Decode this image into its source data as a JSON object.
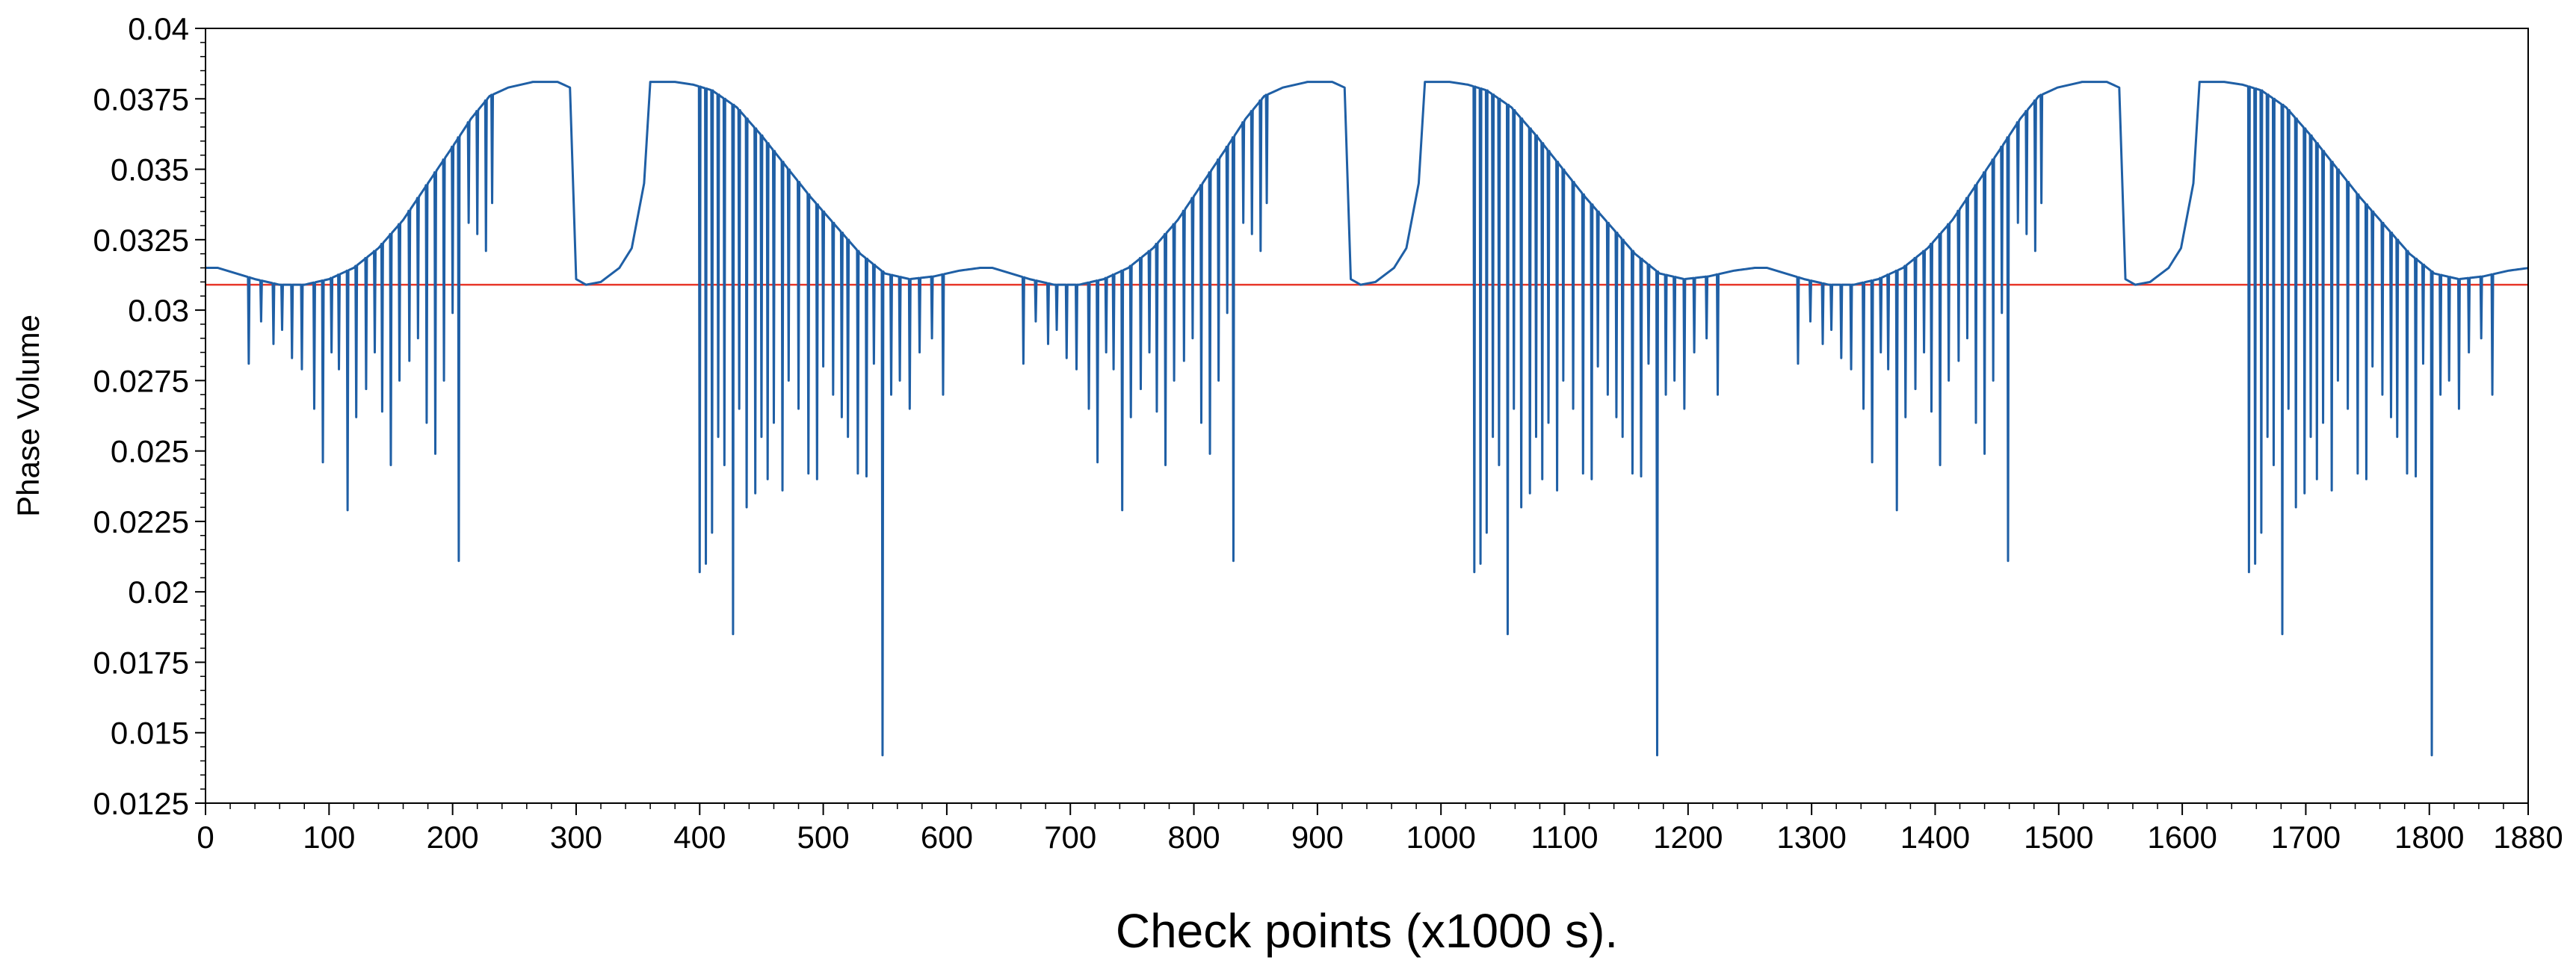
{
  "chart_data": {
    "type": "line",
    "title": "",
    "xlabel": "Check points (x1000 s).",
    "ylabel": "Phase Volume",
    "xlim": [
      0,
      1880
    ],
    "ylim": [
      0.0125,
      0.04
    ],
    "x_ticks": [
      "0",
      "100",
      "200",
      "300",
      "400",
      "500",
      "600",
      "700",
      "800",
      "900",
      "1000",
      "1100",
      "1200",
      "1300",
      "1400",
      "1500",
      "1600",
      "1700",
      "1800",
      "1880"
    ],
    "y_ticks": [
      "0.0125",
      "0.015",
      "0.0175",
      "0.02",
      "0.0225",
      "0.025",
      "0.0275",
      "0.03",
      "0.0325",
      "0.035",
      "0.0375",
      "0.04"
    ],
    "grid": false,
    "colors": {
      "series": "#1f5fa5",
      "reference": "#e8372a",
      "axis": "#000000"
    },
    "reference_line": {
      "y": 0.0309
    },
    "cycle_period": 627,
    "envelope": [
      [
        0,
        0.0315
      ],
      [
        10,
        0.0315
      ],
      [
        25,
        0.0313
      ],
      [
        40,
        0.0311
      ],
      [
        60,
        0.0309
      ],
      [
        80,
        0.0309
      ],
      [
        100,
        0.0311
      ],
      [
        120,
        0.0315
      ],
      [
        140,
        0.0322
      ],
      [
        160,
        0.0332
      ],
      [
        180,
        0.0345
      ],
      [
        200,
        0.0358
      ],
      [
        215,
        0.0368
      ],
      [
        230,
        0.0376
      ],
      [
        245,
        0.0379
      ],
      [
        265,
        0.0381
      ],
      [
        285,
        0.0381
      ],
      [
        295,
        0.0379
      ],
      [
        300,
        0.0311
      ],
      [
        308,
        0.0309
      ],
      [
        320,
        0.031
      ],
      [
        335,
        0.0315
      ],
      [
        345,
        0.0322
      ],
      [
        355,
        0.0345
      ],
      [
        360,
        0.0381
      ],
      [
        380,
        0.0381
      ],
      [
        395,
        0.038
      ],
      [
        410,
        0.0378
      ],
      [
        430,
        0.0372
      ],
      [
        450,
        0.0362
      ],
      [
        470,
        0.0351
      ],
      [
        490,
        0.034
      ],
      [
        510,
        0.033
      ],
      [
        530,
        0.032
      ],
      [
        550,
        0.0313
      ],
      [
        570,
        0.0311
      ],
      [
        590,
        0.0312
      ],
      [
        610,
        0.0314
      ],
      [
        627,
        0.0315
      ]
    ],
    "dips": [
      [
        35,
        0.0281
      ],
      [
        45,
        0.0296
      ],
      [
        55,
        0.0288
      ],
      [
        62,
        0.0293
      ],
      [
        70,
        0.0283
      ],
      [
        78,
        0.0279
      ],
      [
        88,
        0.0265
      ],
      [
        95,
        0.0246
      ],
      [
        102,
        0.0285
      ],
      [
        108,
        0.0279
      ],
      [
        115,
        0.0229
      ],
      [
        122,
        0.0262
      ],
      [
        130,
        0.0272
      ],
      [
        137,
        0.0285
      ],
      [
        143,
        0.0264
      ],
      [
        150,
        0.0245
      ],
      [
        157,
        0.0275
      ],
      [
        165,
        0.0282
      ],
      [
        172,
        0.029
      ],
      [
        179,
        0.026
      ],
      [
        186,
        0.0249
      ],
      [
        193,
        0.0275
      ],
      [
        200,
        0.0299
      ],
      [
        205,
        0.0211
      ],
      [
        213,
        0.0331
      ],
      [
        220,
        0.0327
      ],
      [
        227,
        0.0321
      ],
      [
        232,
        0.0338
      ],
      [
        400,
        0.0207
      ],
      [
        405,
        0.021
      ],
      [
        410,
        0.0221
      ],
      [
        415,
        0.0255
      ],
      [
        420,
        0.0245
      ],
      [
        427,
        0.0185
      ],
      [
        432,
        0.0265
      ],
      [
        438,
        0.023
      ],
      [
        445,
        0.0235
      ],
      [
        450,
        0.0255
      ],
      [
        455,
        0.024
      ],
      [
        460,
        0.026
      ],
      [
        467,
        0.0236
      ],
      [
        472,
        0.0275
      ],
      [
        480,
        0.0265
      ],
      [
        488,
        0.0242
      ],
      [
        495,
        0.024
      ],
      [
        500,
        0.028
      ],
      [
        508,
        0.027
      ],
      [
        515,
        0.0262
      ],
      [
        520,
        0.0255
      ],
      [
        528,
        0.0242
      ],
      [
        535,
        0.0241
      ],
      [
        541,
        0.0281
      ],
      [
        548,
        0.0142
      ],
      [
        555,
        0.027
      ],
      [
        562,
        0.0275
      ],
      [
        570,
        0.0265
      ],
      [
        578,
        0.0285
      ],
      [
        588,
        0.029
      ],
      [
        597,
        0.027
      ]
    ]
  }
}
